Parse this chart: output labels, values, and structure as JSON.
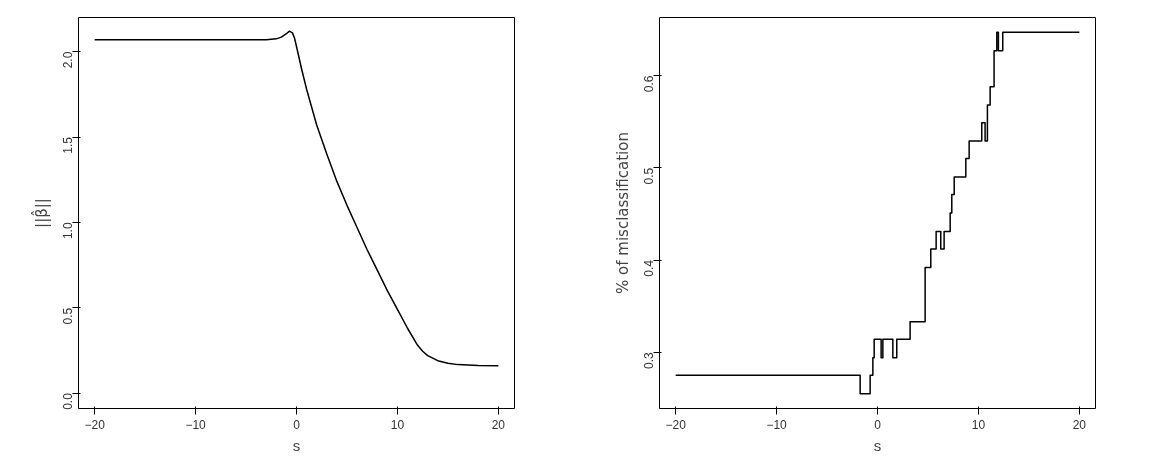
{
  "chart_data": [
    {
      "type": "line",
      "xlabel": "s",
      "ylabel": "||β̂||",
      "xlim": [
        -21.6,
        21.6
      ],
      "ylim": [
        -0.09,
        2.2
      ],
      "grid": false,
      "xticks": [
        -20,
        -10,
        0,
        10,
        20
      ],
      "yticks": [
        {
          "value": 0,
          "label": "0.0"
        },
        0.5,
        {
          "value": 1,
          "label": "1.0"
        },
        1.5,
        {
          "value": 2,
          "label": "2.0"
        }
      ],
      "series": [
        {
          "color": "#000000",
          "x": [
            -20,
            -15,
            -10,
            -5,
            -3,
            -2,
            -1.5,
            -1,
            -0.7,
            -0.4,
            -0.2,
            0,
            0.5,
            1,
            2,
            3,
            4,
            5,
            6,
            7,
            8,
            9,
            10,
            11,
            12,
            12.5,
            13,
            14,
            15,
            16,
            18,
            20
          ],
          "values": [
            2.07,
            2.07,
            2.07,
            2.07,
            2.07,
            2.075,
            2.085,
            2.105,
            2.12,
            2.11,
            2.08,
            2.03,
            1.9,
            1.78,
            1.57,
            1.4,
            1.24,
            1.1,
            0.97,
            0.84,
            0.72,
            0.6,
            0.49,
            0.38,
            0.28,
            0.245,
            0.22,
            0.19,
            0.175,
            0.167,
            0.162,
            0.16
          ]
        }
      ]
    },
    {
      "type": "step",
      "xlabel": "s",
      "ylabel": "% of misclassification",
      "xlim": [
        -21.6,
        21.6
      ],
      "ylim": [
        0.239,
        0.663
      ],
      "grid": false,
      "xticks": [
        -20,
        -10,
        0,
        10,
        20
      ],
      "yticks": [
        0.3,
        0.4,
        0.5,
        0.6
      ],
      "series": [
        {
          "color": "#000000",
          "x": [
            -20,
            -1.72,
            -0.73,
            -0.46,
            -0.33,
            0.36,
            0.53,
            1.52,
            1.91,
            3.23,
            4.72,
            5.28,
            5.81,
            6.27,
            6.6,
            7.2,
            7.36,
            7.6,
            8.75,
            9.08,
            10.33,
            10.66,
            10.89,
            11.16,
            11.55,
            11.82,
            11.98,
            12.41,
            20
          ],
          "values": [
            0.275,
            0.255,
            0.275,
            0.294,
            0.314,
            0.294,
            0.314,
            0.294,
            0.314,
            0.333,
            0.392,
            0.412,
            0.431,
            0.412,
            0.431,
            0.451,
            0.471,
            0.49,
            0.51,
            0.529,
            0.549,
            0.529,
            0.568,
            0.588,
            0.627,
            0.647,
            0.627,
            0.647,
            0.647
          ]
        }
      ]
    }
  ]
}
